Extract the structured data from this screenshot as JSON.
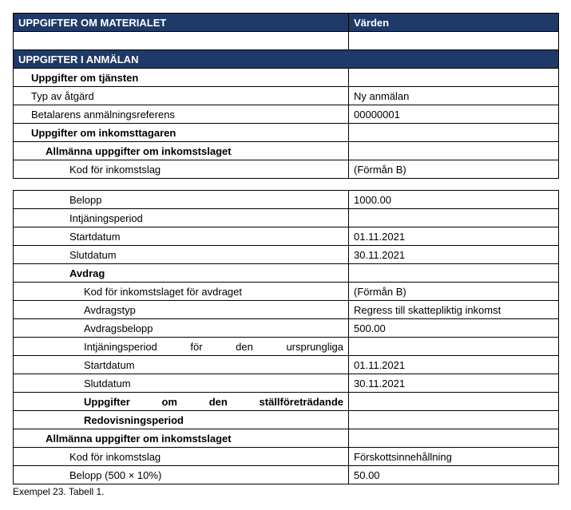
{
  "header1": {
    "left": "UPPGIFTER OM MATERIALET",
    "right": "Värden"
  },
  "header2": "UPPGIFTER I ANMÄLAN",
  "section1": {
    "tjansten": "Uppgifter om tjänsten",
    "typ": {
      "label": "Typ av åtgärd",
      "value": "Ny anmälan"
    },
    "ref": {
      "label": "Betalarens anmälningsreferens",
      "value": "00000001"
    },
    "inkomsttagaren": "Uppgifter om inkomsttagaren",
    "allmanna": "Allmänna uppgifter om inkomstslaget",
    "kod": {
      "label": "Kod för inkomstslag",
      "value": "(Förmån B)"
    }
  },
  "section2": {
    "belopp": {
      "label": "Belopp",
      "value": "1000.00"
    },
    "intjaningsperiod": "Intjäningsperiod",
    "start": {
      "label": "Startdatum",
      "value": "01.11.2021"
    },
    "slut": {
      "label": "Slutdatum",
      "value": "30.11.2021"
    },
    "avdrag": "Avdrag",
    "avdrag_kod": {
      "label": "Kod för inkomstslaget för avdraget",
      "value": "(Förmån B)"
    },
    "avdragstyp": {
      "label": "Avdragstyp",
      "value": "Regress till skattepliktig inkomst"
    },
    "avdragsbelopp": {
      "label": "Avdragsbelopp",
      "value": "500.00"
    },
    "intj_urspr": "Intjäningsperiod för den ursprungliga",
    "start2": {
      "label": "Startdatum",
      "value": "01.11.2021"
    },
    "slut2": {
      "label": "Slutdatum",
      "value": "30.11.2021"
    },
    "stallforetradande": "Uppgifter om den ställföreträdande",
    "redovisningsperiod": "Redovisningsperiod",
    "allmanna2": "Allmänna uppgifter om inkomstslaget",
    "kod2": {
      "label": "Kod för inkomstslag",
      "value": "Förskottsinnehållning"
    },
    "belopp2": {
      "label": "Belopp (500 × 10%)",
      "value": "50.00"
    }
  },
  "caption": "Exempel 23. Tabell 1.",
  "colors": {
    "header_bg": "#1f3a68",
    "header_text": "#ffffff",
    "border": "#000000",
    "bg": "#ffffff"
  }
}
